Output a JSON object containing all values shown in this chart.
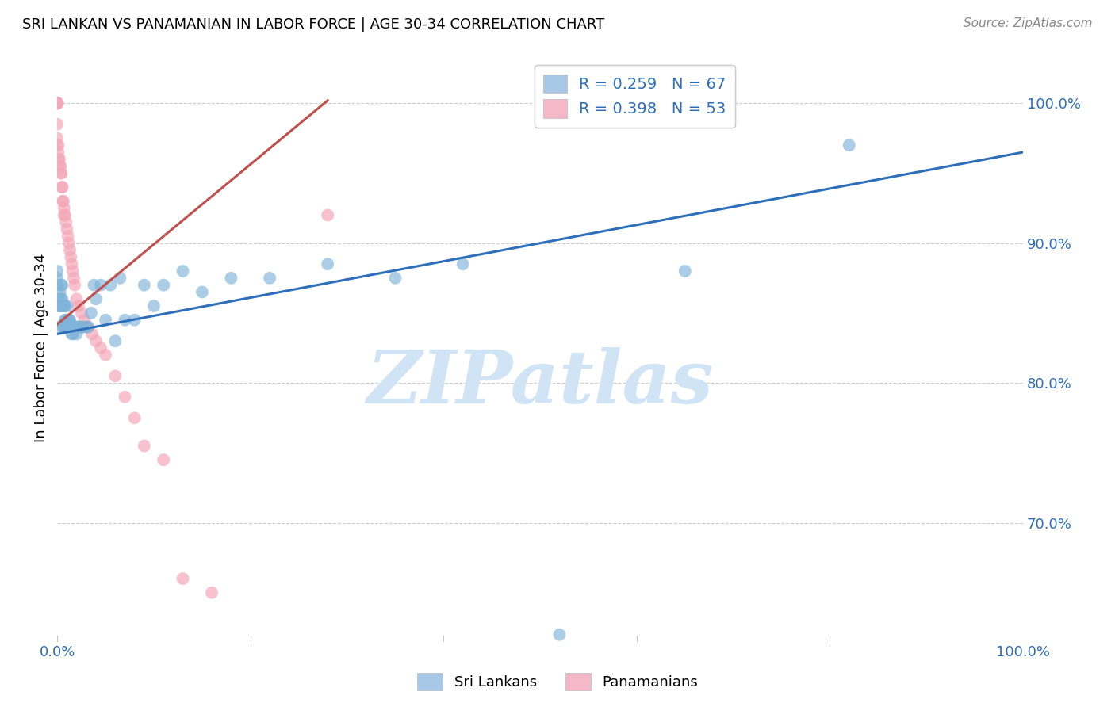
{
  "title": "SRI LANKAN VS PANAMANIAN IN LABOR FORCE | AGE 30-34 CORRELATION CHART",
  "source": "Source: ZipAtlas.com",
  "ylabel": "In Labor Force | Age 30-34",
  "xlim": [
    0.0,
    1.0
  ],
  "ylim": [
    0.615,
    1.035
  ],
  "y_ticks": [
    0.7,
    0.8,
    0.9,
    1.0
  ],
  "y_tick_labels": [
    "70.0%",
    "80.0%",
    "90.0%",
    "100.0%"
  ],
  "x_ticks": [
    0.0,
    0.2,
    0.4,
    0.6,
    0.8,
    1.0
  ],
  "x_tick_labels": [
    "0.0%",
    "",
    "",
    "",
    "",
    "100.0%"
  ],
  "blue_scatter_color": "#7fb3d9",
  "pink_scatter_color": "#f4a8b8",
  "blue_line_color": "#2e6fba",
  "pink_line_color": "#c0504d",
  "watermark_text": "ZIPatlas",
  "watermark_color": "#d0e4f5",
  "legend_entries": [
    {
      "label": "R = 0.259   N = 67",
      "color": "#a8c8e8"
    },
    {
      "label": "R = 0.398   N = 53",
      "color": "#f4b8c8"
    }
  ],
  "bottom_legend": [
    "Sri Lankans",
    "Panamanians"
  ],
  "sri_lankans_x": [
    0.0,
    0.0,
    0.0,
    0.0,
    0.0,
    0.002,
    0.002,
    0.003,
    0.003,
    0.004,
    0.004,
    0.005,
    0.005,
    0.005,
    0.006,
    0.006,
    0.007,
    0.007,
    0.008,
    0.008,
    0.009,
    0.009,
    0.01,
    0.01,
    0.011,
    0.011,
    0.012,
    0.013,
    0.013,
    0.014,
    0.015,
    0.015,
    0.016,
    0.017,
    0.018,
    0.019,
    0.02,
    0.021,
    0.022,
    0.024,
    0.025,
    0.027,
    0.03,
    0.032,
    0.035,
    0.038,
    0.04,
    0.045,
    0.05,
    0.055,
    0.06,
    0.065,
    0.07,
    0.08,
    0.09,
    0.1,
    0.11,
    0.13,
    0.15,
    0.18,
    0.22,
    0.28,
    0.35,
    0.42,
    0.52,
    0.65,
    0.82
  ],
  "sri_lankans_y": [
    0.84,
    0.855,
    0.87,
    0.875,
    0.88,
    0.855,
    0.86,
    0.855,
    0.865,
    0.86,
    0.87,
    0.855,
    0.86,
    0.87,
    0.84,
    0.855,
    0.84,
    0.855,
    0.845,
    0.855,
    0.84,
    0.845,
    0.84,
    0.855,
    0.84,
    0.845,
    0.845,
    0.84,
    0.845,
    0.84,
    0.835,
    0.84,
    0.835,
    0.84,
    0.84,
    0.84,
    0.835,
    0.84,
    0.84,
    0.84,
    0.84,
    0.84,
    0.84,
    0.84,
    0.85,
    0.87,
    0.86,
    0.87,
    0.845,
    0.87,
    0.83,
    0.875,
    0.845,
    0.845,
    0.87,
    0.855,
    0.87,
    0.88,
    0.865,
    0.875,
    0.875,
    0.885,
    0.875,
    0.885,
    0.62,
    0.88,
    0.97
  ],
  "panamanians_x": [
    0.0,
    0.0,
    0.0,
    0.0,
    0.0,
    0.0,
    0.0,
    0.0,
    0.0,
    0.0,
    0.0,
    0.001,
    0.001,
    0.002,
    0.002,
    0.003,
    0.003,
    0.004,
    0.004,
    0.005,
    0.005,
    0.006,
    0.006,
    0.007,
    0.007,
    0.008,
    0.009,
    0.01,
    0.011,
    0.012,
    0.013,
    0.014,
    0.015,
    0.016,
    0.017,
    0.018,
    0.02,
    0.022,
    0.025,
    0.028,
    0.032,
    0.036,
    0.04,
    0.045,
    0.05,
    0.06,
    0.07,
    0.08,
    0.09,
    0.11,
    0.13,
    0.16,
    0.28
  ],
  "panamanians_y": [
    1.0,
    1.0,
    1.0,
    1.0,
    1.0,
    1.0,
    1.0,
    1.0,
    0.985,
    0.975,
    0.97,
    0.97,
    0.965,
    0.96,
    0.96,
    0.955,
    0.955,
    0.95,
    0.95,
    0.94,
    0.94,
    0.93,
    0.93,
    0.925,
    0.92,
    0.92,
    0.915,
    0.91,
    0.905,
    0.9,
    0.895,
    0.89,
    0.885,
    0.88,
    0.875,
    0.87,
    0.86,
    0.855,
    0.85,
    0.845,
    0.84,
    0.835,
    0.83,
    0.825,
    0.82,
    0.805,
    0.79,
    0.775,
    0.755,
    0.745,
    0.66,
    0.65,
    0.92
  ],
  "blue_line_x0": 0.0,
  "blue_line_y0": 0.835,
  "blue_line_x1": 1.0,
  "blue_line_y1": 0.965,
  "pink_line_x0": 0.0,
  "pink_line_y0": 0.842,
  "pink_line_x1": 0.28,
  "pink_line_y1": 1.002
}
